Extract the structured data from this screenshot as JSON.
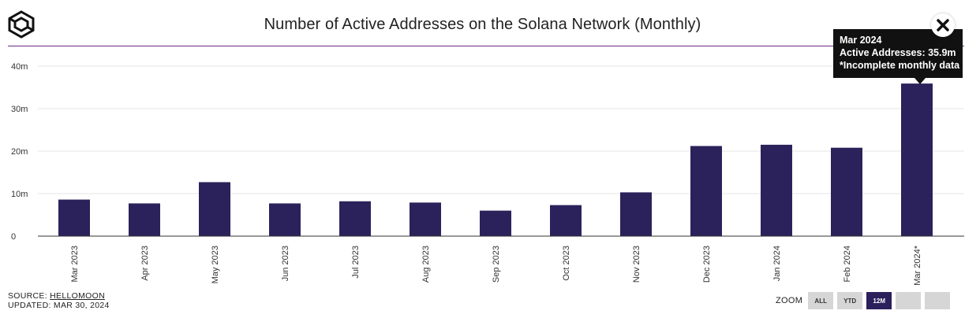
{
  "title": "Number of Active Addresses on the Solana Network (Monthly)",
  "colors": {
    "bar": "#2b225b",
    "accent_rule": "#6b2c86",
    "tooltip_bg": "#111111",
    "zoom_active": "#2b1f5c"
  },
  "tooltip": {
    "line1": "Mar 2024",
    "line2": "Active Addresses: 35.9m",
    "line3": "*Incomplete monthly data"
  },
  "source": {
    "label": "SOURCE:",
    "link": "HELLOMOON",
    "updated": "UPDATED: MAR 30, 2024"
  },
  "zoom": {
    "label": "ZOOM",
    "buttons": [
      {
        "label": "ALL",
        "active": false
      },
      {
        "label": "YTD",
        "active": false
      },
      {
        "label": "12M",
        "active": true
      },
      {
        "label": "",
        "active": false
      },
      {
        "label": "",
        "active": false
      }
    ]
  },
  "chart_data": {
    "type": "bar",
    "title": "Number of Active Addresses on the Solana Network (Monthly)",
    "xlabel": "",
    "ylabel": "",
    "categories": [
      "Mar 2023",
      "Apr 2023",
      "May 2023",
      "Jun 2023",
      "Jul 2023",
      "Aug 2023",
      "Sep 2023",
      "Oct 2023",
      "Nov 2023",
      "Dec 2023",
      "Jan 2024",
      "Feb 2024",
      "Mar 2024*"
    ],
    "values": [
      8.6,
      7.7,
      12.7,
      7.7,
      8.2,
      7.9,
      6.0,
      7.3,
      10.3,
      21.2,
      21.5,
      20.8,
      35.9
    ],
    "unit": "m",
    "ylim": [
      0,
      40
    ],
    "yticks": [
      0,
      10,
      20,
      30,
      40
    ],
    "ytick_labels": [
      "0",
      "10m",
      "20m",
      "30m",
      "40m"
    ],
    "grid": true,
    "legend": "none"
  }
}
